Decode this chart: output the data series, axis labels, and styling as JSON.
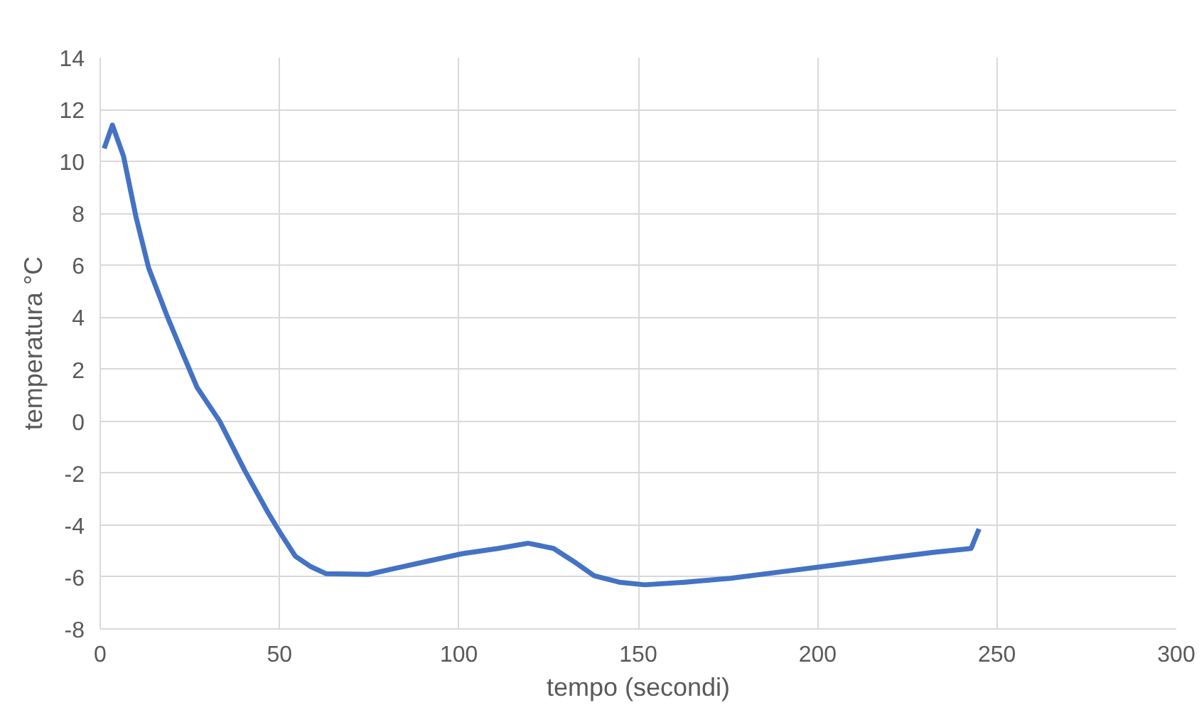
{
  "chart_data": {
    "type": "line",
    "xlabel": "tempo (secondi)",
    "ylabel": "temperatura °C",
    "xlim": [
      0,
      300
    ],
    "ylim": [
      -8,
      14
    ],
    "xticks": [
      0,
      50,
      100,
      150,
      200,
      250,
      300
    ],
    "yticks": [
      -8,
      -6,
      -4,
      -2,
      0,
      2,
      4,
      6,
      8,
      10,
      12,
      14
    ],
    "grid": true,
    "marker": "none",
    "line_style": "solid",
    "series": [
      {
        "color": "#4472c4",
        "x": [
          1.1,
          3.4,
          6.5,
          10,
          13.5,
          18.5,
          22.7,
          27,
          33.3,
          40.3,
          46.7,
          50.2,
          54.4,
          58.7,
          62.9,
          74.7,
          81.2,
          91,
          101,
          110.9,
          119.3,
          126.4,
          132,
          137.7,
          144.7,
          151.8,
          163,
          175.7,
          189.8,
          204,
          218,
          232.2,
          242.8,
          243.1,
          245
        ],
        "values": [
          10.5,
          11.4,
          10.2,
          7.85,
          5.9,
          4.1,
          2.7,
          1.3,
          0,
          -1.9,
          -3.5,
          -4.3,
          -5.2,
          -5.6,
          -5.87,
          -5.9,
          -5.7,
          -5.4,
          -5.1,
          -4.9,
          -4.7,
          -4.9,
          -5.4,
          -5.95,
          -6.2,
          -6.3,
          -6.2,
          -6.05,
          -5.8,
          -5.55,
          -5.3,
          -5.05,
          -4.9,
          -4.8,
          -4.15
        ]
      }
    ]
  }
}
